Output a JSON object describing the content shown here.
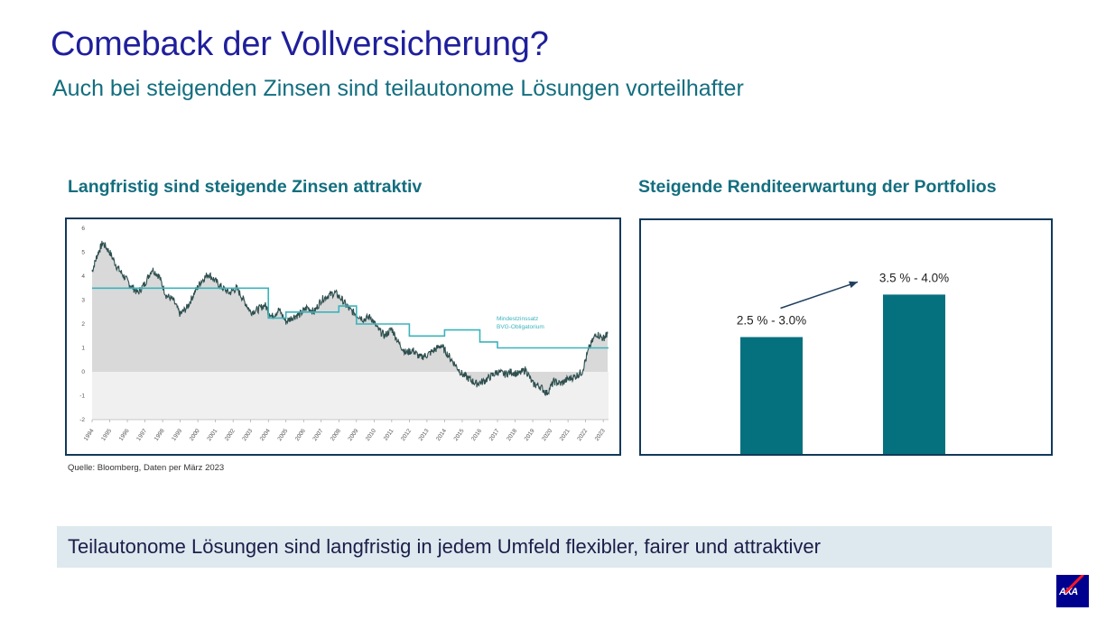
{
  "header": {
    "title": "Comeback der Vollversicherung?",
    "subtitle": "Auch bei steigenden Zinsen sind teilautonome Lösungen vorteilhafter"
  },
  "left_panel": {
    "heading": "Langfristig sind steigende Zinsen attraktiv",
    "source": "Quelle: Bloomberg, Daten per März 2023",
    "annotation_line1": "Mindestzinssatz",
    "annotation_line2": "BVG-Obligatorium"
  },
  "right_panel": {
    "heading": "Steigende Renditeerwartung der Portfolios"
  },
  "banner": {
    "text": "Teilautonome Lösungen sind langfristig in jedem Umfeld flexibler, fairer und attraktiver"
  },
  "logo": {
    "text": "AXA"
  },
  "colors": {
    "title": "#1f1f9c",
    "teal": "#136e7f",
    "bar": "#06717e",
    "frame": "#12395a",
    "series_yield": "#2f4f4f",
    "series_min_rate": "#3bb3bc",
    "area_fill": "#d9d9d9",
    "banner_bg": "#dde9ee",
    "logo_bg": "#00008f",
    "logo_accent": "#ff1721"
  },
  "chart_data": [
    {
      "type": "line",
      "title": "Langfristig sind steigende Zinsen attraktiv",
      "xlabel": "",
      "ylabel": "",
      "xlim": [
        1994,
        2023.3
      ],
      "ylim": [
        -2,
        6
      ],
      "x_tick_labels": [
        "1994",
        "1995",
        "1996",
        "1997",
        "1998",
        "1999",
        "2000",
        "2001",
        "2002",
        "2003",
        "2004",
        "2005",
        "2006",
        "2007",
        "2008",
        "2009",
        "2010",
        "2011",
        "2012",
        "2013",
        "2014",
        "2015",
        "2016",
        "2017",
        "2018",
        "2019",
        "2020",
        "2021",
        "2022",
        "2023"
      ],
      "y_tick_labels": [
        "-2",
        "-1",
        "0",
        "1",
        "2",
        "3",
        "4",
        "5",
        "6"
      ],
      "grid": false,
      "series": [
        {
          "name": "",
          "style": "noisy-line-with-area",
          "x": [
            1994.0,
            1994.3,
            1994.6,
            1995.0,
            1995.4,
            1995.8,
            1996.2,
            1996.6,
            1997.0,
            1997.4,
            1997.8,
            1998.2,
            1998.6,
            1999.0,
            1999.4,
            1999.8,
            2000.2,
            2000.6,
            2001.0,
            2001.4,
            2001.8,
            2002.2,
            2002.6,
            2003.0,
            2003.4,
            2003.8,
            2004.2,
            2004.6,
            2005.0,
            2005.4,
            2005.8,
            2006.2,
            2006.6,
            2007.0,
            2007.4,
            2007.8,
            2008.2,
            2008.6,
            2009.0,
            2009.4,
            2009.8,
            2010.2,
            2010.6,
            2011.0,
            2011.4,
            2011.8,
            2012.2,
            2012.6,
            2013.0,
            2013.4,
            2013.8,
            2014.2,
            2014.6,
            2015.0,
            2015.4,
            2015.8,
            2016.2,
            2016.6,
            2017.0,
            2017.4,
            2017.8,
            2018.2,
            2018.6,
            2019.0,
            2019.4,
            2019.8,
            2020.2,
            2020.6,
            2021.0,
            2021.4,
            2021.8,
            2022.2,
            2022.6,
            2023.0,
            2023.25
          ],
          "values": [
            4.2,
            4.9,
            5.4,
            5.0,
            4.4,
            4.0,
            3.6,
            3.3,
            3.7,
            4.3,
            4.0,
            3.2,
            3.0,
            2.4,
            2.7,
            3.3,
            3.8,
            4.1,
            3.8,
            3.5,
            3.3,
            3.5,
            3.0,
            2.5,
            2.6,
            2.8,
            2.3,
            2.6,
            2.1,
            2.3,
            2.4,
            2.7,
            2.5,
            3.0,
            3.2,
            3.3,
            3.0,
            2.6,
            2.4,
            2.2,
            2.3,
            1.8,
            1.5,
            1.8,
            1.2,
            0.8,
            0.9,
            0.6,
            0.7,
            0.9,
            1.1,
            0.7,
            0.3,
            -0.1,
            -0.3,
            -0.5,
            -0.4,
            -0.2,
            0.0,
            -0.1,
            0.0,
            -0.1,
            0.1,
            -0.5,
            -0.6,
            -0.9,
            -0.4,
            -0.5,
            -0.3,
            -0.2,
            0.0,
            1.0,
            1.6,
            1.4,
            1.6
          ]
        },
        {
          "name": "",
          "style": "step-line",
          "x": [
            1994.0,
            2003.0,
            2004.0,
            2005.0,
            2008.0,
            2009.0,
            2012.0,
            2014.0,
            2016.0,
            2017.0,
            2023.3
          ],
          "values": [
            3.5,
            3.5,
            2.25,
            2.5,
            2.75,
            2.0,
            1.5,
            1.75,
            1.25,
            1.0,
            1.0
          ]
        }
      ]
    },
    {
      "type": "bar",
      "title": "Steigende Renditeerwartung der Portfolios",
      "xlabel": "",
      "ylabel": "",
      "categories": [
        "",
        ""
      ],
      "values": [
        2.75,
        3.75
      ],
      "value_ranges": [
        [
          2.5,
          3.0
        ],
        [
          3.5,
          4.0
        ]
      ],
      "data_labels": [
        "2.5 % - 3.0%",
        "3.5 % - 4.0%"
      ],
      "ylim": [
        0,
        5.5
      ],
      "grid": false
    }
  ]
}
